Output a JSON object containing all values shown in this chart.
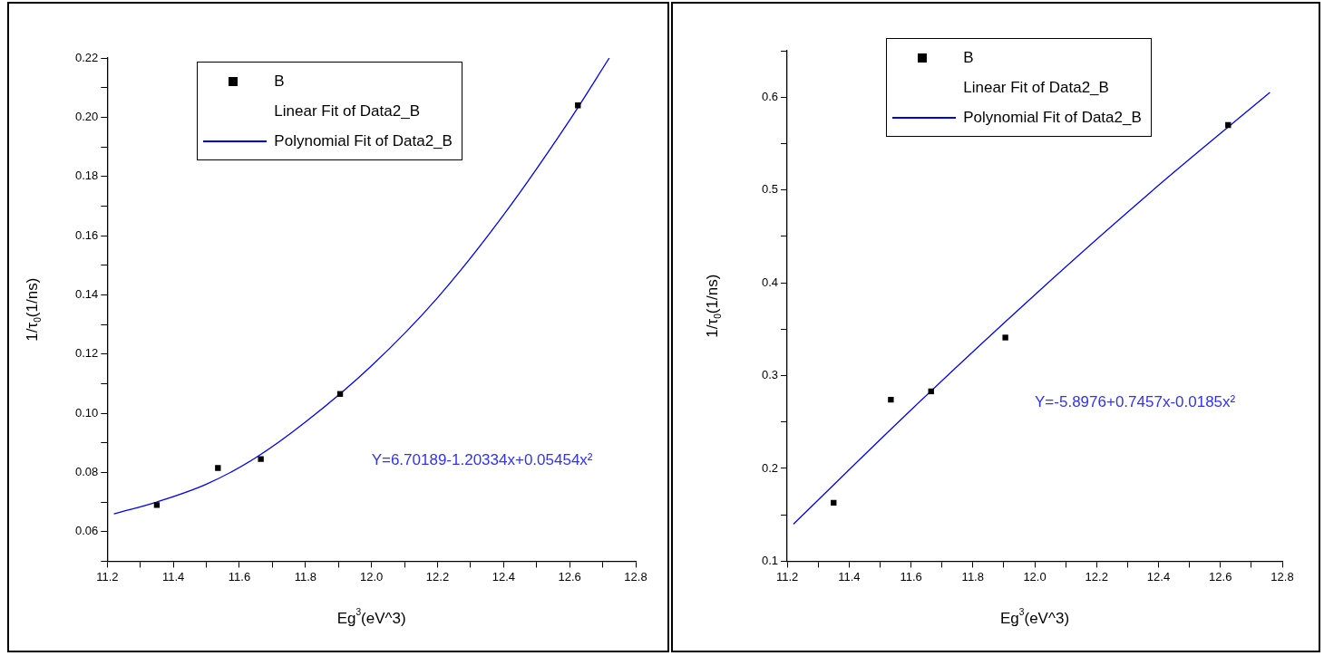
{
  "chart_data": [
    {
      "type": "scatter",
      "xlabel": "Eg$^{3}$(eV^3)",
      "ylabel": "1/τ$_{0}$(1/ns)",
      "xlim": [
        11.2,
        12.8
      ],
      "ylim": [
        0.05,
        0.22
      ],
      "xticks": [
        11.2,
        {
          "value": 11.3,
          "label": null
        },
        11.4,
        {
          "value": 11.5,
          "label": null
        },
        11.6,
        {
          "value": 11.7,
          "label": null
        },
        11.8,
        {
          "value": 11.9,
          "label": null
        },
        {
          "value": 12,
          "label": "12.0"
        },
        {
          "value": 12.1,
          "label": null
        },
        12.2,
        {
          "value": 12.3,
          "label": null
        },
        12.4,
        {
          "value": 12.5,
          "label": null
        },
        12.6,
        {
          "value": 12.7,
          "label": null
        },
        12.8
      ],
      "yticks": [
        {
          "value": 0.05,
          "label": null
        },
        0.06,
        {
          "value": 0.07,
          "label": null
        },
        0.08,
        {
          "value": 0.09,
          "label": null
        },
        {
          "value": 0.1,
          "label": "0.10"
        },
        {
          "value": 0.11,
          "label": null
        },
        {
          "value": 0.12,
          "label": "0.12"
        },
        {
          "value": 0.13,
          "label": null
        },
        0.14,
        {
          "value": 0.15,
          "label": null
        },
        0.16,
        {
          "value": 0.17,
          "label": null
        },
        0.18,
        {
          "value": 0.19,
          "label": null
        },
        {
          "value": 0.2,
          "label": "0.20"
        },
        {
          "value": 0.21,
          "label": null
        },
        0.22
      ],
      "grid": false,
      "legend": "top",
      "annotations": [
        "Y=6.70189-1.20334x+0.05454x²"
      ],
      "series": [
        {
          "name": "B",
          "marker": "square",
          "color": "#000000",
          "x": [
            11.35,
            11.535,
            11.665,
            11.905,
            12.625
          ],
          "values": [
            0.069,
            0.0815,
            0.0845,
            0.1065,
            0.204
          ]
        },
        {
          "name": "Linear Fit of Data2_B",
          "type": "line"
        },
        {
          "name": "Polynomial Fit of Data2_B",
          "type": "line",
          "marker": "none",
          "color": "#0000ff",
          "line_style": "solid",
          "x": [
            11.22,
            11.35,
            11.5,
            11.65,
            11.8,
            12.0,
            12.2,
            12.4,
            12.6,
            12.72
          ],
          "values": [
            0.066,
            0.07,
            0.076,
            0.085,
            0.097,
            0.116,
            0.139,
            0.167,
            0.199,
            0.22
          ]
        }
      ]
    },
    {
      "type": "scatter",
      "xlabel": "Eg$^{3}$(eV^3)",
      "ylabel": "1/τ$_{0}$(1/ns)",
      "xlim": [
        11.2,
        12.8
      ],
      "ylim": [
        0.1,
        0.65
      ],
      "xticks": [
        11.2,
        {
          "value": 11.3,
          "label": null
        },
        11.4,
        {
          "value": 11.5,
          "label": null
        },
        11.6,
        {
          "value": 11.7,
          "label": null
        },
        11.8,
        {
          "value": 11.9,
          "label": null
        },
        {
          "value": 12,
          "label": "12.0"
        },
        {
          "value": 12.1,
          "label": null
        },
        12.2,
        {
          "value": 12.3,
          "label": null
        },
        12.4,
        {
          "value": 12.5,
          "label": null
        },
        12.6,
        {
          "value": 12.7,
          "label": null
        },
        12.8
      ],
      "yticks": [
        0.1,
        {
          "value": 0.15,
          "label": null
        },
        0.2,
        {
          "value": 0.25,
          "label": null
        },
        0.3,
        {
          "value": 0.35,
          "label": null
        },
        0.4,
        {
          "value": 0.45,
          "label": null
        },
        0.5,
        {
          "value": 0.55,
          "label": null
        },
        0.6,
        {
          "value": 0.65,
          "label": null
        }
      ],
      "grid": false,
      "legend": "top",
      "annotations": [
        "Y=-5.8976+0.7457x-0.0185x²"
      ],
      "series": [
        {
          "name": "B",
          "marker": "square",
          "color": "#000000",
          "x": [
            11.35,
            11.535,
            11.665,
            11.905,
            12.625
          ],
          "values": [
            0.163,
            0.274,
            0.283,
            0.341,
            0.57
          ]
        },
        {
          "name": "Linear Fit of Data2_B",
          "type": "line"
        },
        {
          "name": "Polynomial Fit of Data2_B",
          "type": "line",
          "marker": "none",
          "color": "#0000ff",
          "line_style": "solid",
          "x": [
            11.22,
            11.6,
            12.0,
            12.4,
            12.76
          ],
          "values": [
            0.14,
            0.263,
            0.387,
            0.505,
            0.605
          ]
        }
      ]
    }
  ]
}
